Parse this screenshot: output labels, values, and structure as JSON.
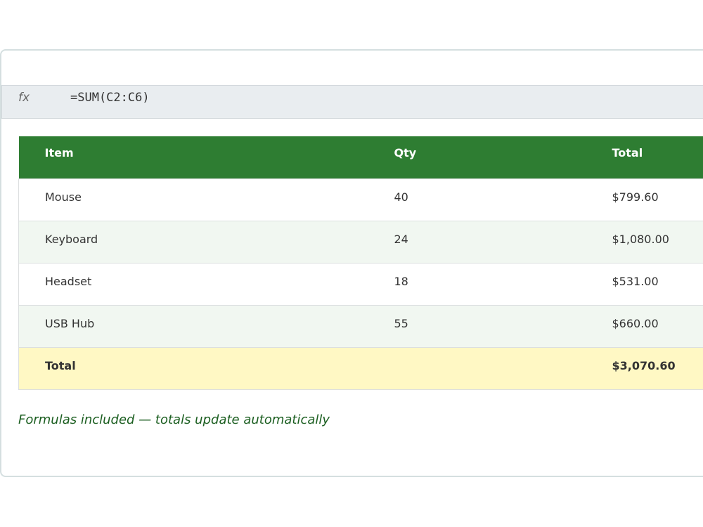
{
  "formula_bar": {
    "label": "fx",
    "formula": "=SUM(C2:C6)"
  },
  "table": {
    "header": [
      "Item",
      "Qty",
      "Total"
    ],
    "rows": [
      [
        "Mouse",
        "40",
        "$799.60"
      ],
      [
        "Keyboard",
        "24",
        "$1,080.00"
      ],
      [
        "Headset",
        "18",
        "$531.00"
      ],
      [
        "USB Hub",
        "55",
        "$660.00"
      ]
    ],
    "total_row": [
      "Total",
      "",
      "$3,070.60"
    ]
  },
  "note": "Formulas included — totals update automatically"
}
